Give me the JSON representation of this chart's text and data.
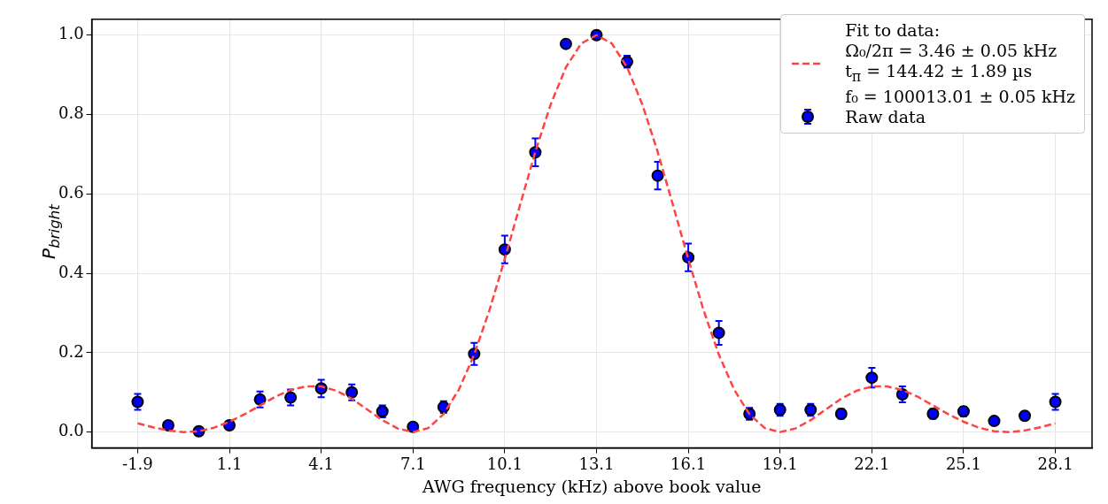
{
  "chart_data": {
    "type": "scatter",
    "xlabel": "AWG frequency (kHz) above book value",
    "ylabel": "P$_{bright}$",
    "xlim": [
      -3.4,
      29.3
    ],
    "ylim": [
      -0.04,
      1.04
    ],
    "xticks": [
      -1.9,
      1.1,
      4.1,
      7.1,
      10.1,
      13.1,
      16.1,
      19.1,
      22.1,
      25.1,
      28.1
    ],
    "yticks": [
      {
        "value": 0,
        "label": "0.0"
      },
      {
        "value": 0.2,
        "label": "0.2"
      },
      {
        "value": 0.4,
        "label": "0.4"
      },
      {
        "value": 0.6,
        "label": "0.6"
      },
      {
        "value": 0.8,
        "label": "0.8"
      },
      {
        "value": 1,
        "label": "1.0"
      }
    ],
    "grid": true,
    "legend": "top right",
    "line_style": "dashed",
    "series": [
      {
        "name": "Fit to data:\nΩ₀/2π = 3.46 ± 0.05 kHz\nt$_{π}$ = 144.42 ± 1.89 µs\nf₀ = 100013.01 ± 0.05 kHz",
        "type": "line",
        "color": "#ff4444",
        "marker": "none",
        "x": [
          -1.9,
          -1.4,
          -0.9,
          -0.4,
          0.1,
          0.6,
          1.1,
          1.6,
          2.1,
          2.6,
          3.1,
          3.6,
          4.1,
          4.6,
          5.1,
          5.6,
          6.1,
          6.6,
          7.1,
          7.6,
          8.1,
          8.6,
          9.1,
          9.6,
          10.1,
          10.6,
          11.1,
          11.6,
          12.1,
          12.6,
          13.1,
          13.6,
          14.1,
          14.6,
          15.1,
          15.6,
          16.1,
          16.6,
          17.1,
          17.6,
          18.1,
          18.6,
          19.1,
          19.6,
          20.1,
          20.6,
          21.1,
          21.6,
          22.1,
          22.6,
          23.1,
          23.6,
          24.1,
          24.6,
          25.1,
          25.6,
          26.1,
          26.6,
          27.1,
          27.6,
          28.1
        ],
        "values": [
          0.022,
          0.012,
          0.004,
          0.0,
          0.002,
          0.011,
          0.026,
          0.045,
          0.067,
          0.089,
          0.106,
          0.115,
          0.115,
          0.104,
          0.084,
          0.057,
          0.03,
          0.009,
          0.0,
          0.01,
          0.045,
          0.107,
          0.195,
          0.307,
          0.436,
          0.572,
          0.706,
          0.825,
          0.919,
          0.979,
          1.0,
          0.979,
          0.919,
          0.825,
          0.706,
          0.572,
          0.436,
          0.307,
          0.195,
          0.107,
          0.045,
          0.01,
          0.0,
          0.009,
          0.03,
          0.057,
          0.084,
          0.104,
          0.115,
          0.115,
          0.106,
          0.089,
          0.067,
          0.045,
          0.026,
          0.011,
          0.002,
          0.0,
          0.004,
          0.012,
          0.022
        ]
      },
      {
        "name": "Raw data",
        "color": "#0000ff",
        "marker": "circle",
        "x": [
          -1.9,
          -0.9,
          0.1,
          1.1,
          2.1,
          3.1,
          4.1,
          5.1,
          6.1,
          7.1,
          8.1,
          9.1,
          10.1,
          11.1,
          12.1,
          13.1,
          14.1,
          15.1,
          16.1,
          17.1,
          18.1,
          19.1,
          20.1,
          21.1,
          22.1,
          23.1,
          24.1,
          25.1,
          26.1,
          27.1,
          28.1
        ],
        "values": [
          0.076,
          0.017,
          0.002,
          0.017,
          0.082,
          0.087,
          0.11,
          0.1,
          0.052,
          0.013,
          0.063,
          0.197,
          0.46,
          0.705,
          0.978,
          1.0,
          0.933,
          0.646,
          0.44,
          0.25,
          0.046,
          0.056,
          0.056,
          0.046,
          0.137,
          0.095,
          0.046,
          0.052,
          0.028,
          0.041,
          0.076
        ],
        "errors": [
          0.02,
          null,
          null,
          null,
          0.02,
          0.02,
          0.022,
          0.02,
          0.015,
          null,
          0.015,
          0.028,
          0.035,
          0.035,
          null,
          null,
          0.015,
          0.035,
          0.035,
          0.03,
          0.015,
          0.015,
          0.015,
          0.012,
          0.025,
          0.02,
          0.012,
          0.012,
          null,
          0.01,
          0.02
        ]
      }
    ]
  }
}
